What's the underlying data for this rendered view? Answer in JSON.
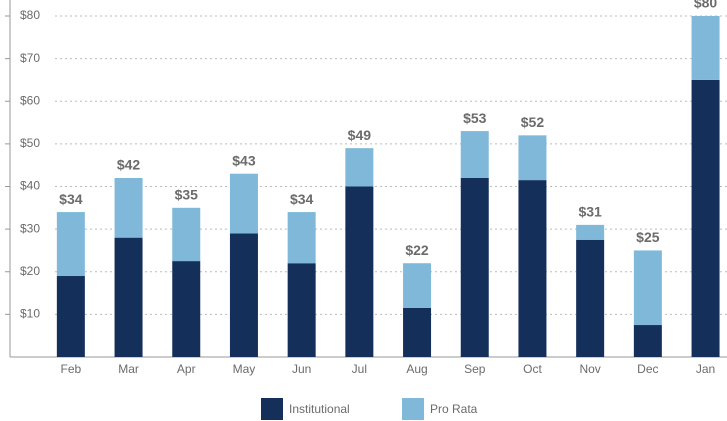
{
  "chart_data": {
    "type": "stacked_bar",
    "categories": [
      "Feb",
      "Mar",
      "Apr",
      "May",
      "Jun",
      "Jul",
      "Aug",
      "Sep",
      "Oct",
      "Nov",
      "Dec",
      "Jan"
    ],
    "series": [
      {
        "name": "Institutional",
        "color": "#14305a",
        "values": [
          19,
          28,
          22.5,
          29,
          22,
          40,
          11.5,
          42,
          41.5,
          27.5,
          7.5,
          65
        ]
      },
      {
        "name": "Pro Rata",
        "color": "#7fb8d9",
        "values": [
          15,
          14,
          12.5,
          14,
          12,
          9,
          10.5,
          11,
          10.5,
          3.5,
          17.5,
          15
        ]
      }
    ],
    "total_labels": [
      "$34",
      "$42",
      "$35",
      "$43",
      "$34",
      "$49",
      "$22",
      "$53",
      "$52",
      "$31",
      "$25",
      "$80"
    ],
    "ylim": [
      0,
      80
    ],
    "yticks": [
      {
        "value": 10,
        "label": "$10"
      },
      {
        "value": 20,
        "label": "$20"
      },
      {
        "value": 30,
        "label": "$30"
      },
      {
        "value": 40,
        "label": "$40"
      },
      {
        "value": 50,
        "label": "$50"
      },
      {
        "value": 60,
        "label": "$60"
      },
      {
        "value": 70,
        "label": "$70"
      },
      {
        "value": 80,
        "label": "$80"
      }
    ],
    "grid": true,
    "legend": "bottom"
  }
}
